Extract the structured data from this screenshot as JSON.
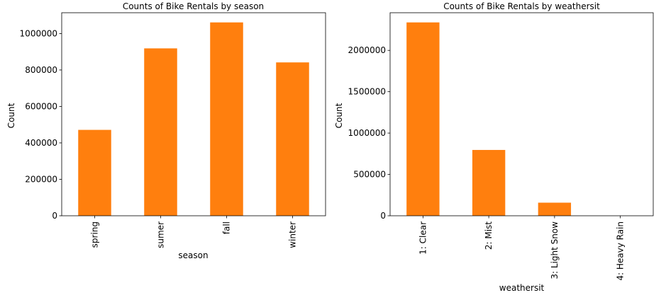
{
  "chart_data": [
    {
      "type": "bar",
      "title": "Counts of Bike Rentals by season",
      "xlabel": "season",
      "ylabel": "Count",
      "categories": [
        "spring",
        "sumer",
        "fall",
        "winter"
      ],
      "values": [
        471348,
        918589,
        1061129,
        841613
      ],
      "ylim": [
        0,
        1114185
      ],
      "yticks": [
        0,
        200000,
        400000,
        600000,
        800000,
        1000000
      ],
      "bar_color": "#ff7f0e",
      "grid": false
    },
    {
      "type": "bar",
      "title": "Counts of Bike Rentals by weathersit",
      "xlabel": "weathersit",
      "ylabel": "Count",
      "categories": [
        "1: Clear",
        "2: Mist",
        "3: Light Snow",
        "4: Heavy Rain"
      ],
      "values": [
        2338173,
        795952,
        158331,
        223
      ],
      "ylim": [
        0,
        2455082
      ],
      "yticks": [
        0,
        500000,
        1000000,
        1500000,
        2000000
      ],
      "bar_color": "#ff7f0e",
      "grid": false
    }
  ]
}
